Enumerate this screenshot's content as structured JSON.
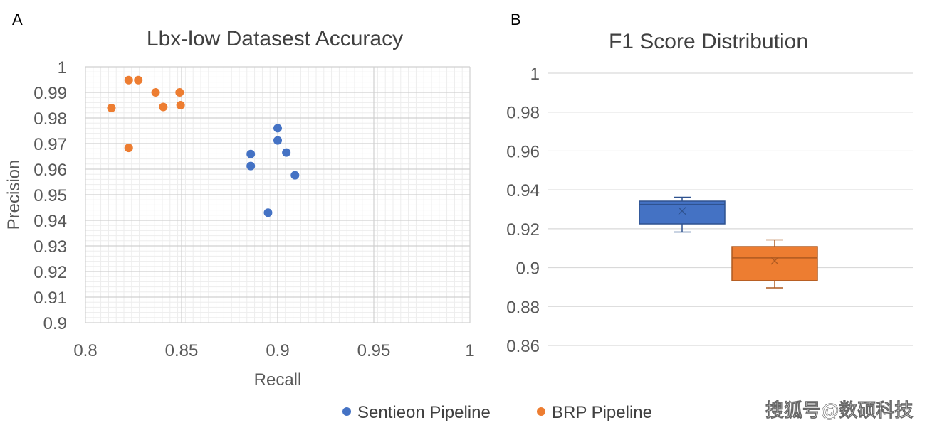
{
  "panels": {
    "a_label": "A",
    "b_label": "B"
  },
  "colors": {
    "sentieon": "#4472C4",
    "brp": "#ED7D31"
  },
  "chart_data": [
    {
      "type": "scatter",
      "title": "Lbx-low Datasest Accuracy",
      "xlabel": "Recall",
      "ylabel": "Precision",
      "xlim": [
        0.8,
        1
      ],
      "ylim": [
        0.9,
        1
      ],
      "x_ticks": [
        "0.8",
        "0.85",
        "0.9",
        "0.95",
        "1"
      ],
      "y_ticks": [
        "0.9",
        "0.91",
        "0.92",
        "0.93",
        "0.94",
        "0.95",
        "0.96",
        "0.97",
        "0.98",
        "0.99",
        "1"
      ],
      "grid": true,
      "series": [
        {
          "name": "Sentieon Pipeline",
          "points": [
            [
              0.9,
              0.976
            ],
            [
              0.9,
              0.9712
            ],
            [
              0.886,
              0.9659
            ],
            [
              0.9045,
              0.9665
            ],
            [
              0.886,
              0.9612
            ],
            [
              0.909,
              0.9576
            ],
            [
              0.895,
              0.943
            ]
          ]
        },
        {
          "name": "BRP Pipeline",
          "points": [
            [
              0.8225,
              0.9948
            ],
            [
              0.8275,
              0.9948
            ],
            [
              0.8365,
              0.99
            ],
            [
              0.849,
              0.99
            ],
            [
              0.8135,
              0.9839
            ],
            [
              0.8405,
              0.9843
            ],
            [
              0.8495,
              0.985
            ],
            [
              0.8225,
              0.9683
            ]
          ]
        }
      ]
    },
    {
      "type": "box",
      "title": "F1 Score Distribution",
      "ylim": [
        0.86,
        1
      ],
      "y_ticks": [
        "0.86",
        "0.88",
        "0.9",
        "0.92",
        "0.94",
        "0.96",
        "0.98",
        "1"
      ],
      "grid": true,
      "series": [
        {
          "name": "Sentieon Pipeline",
          "min": 0.9183,
          "q1": 0.9225,
          "median": 0.9325,
          "q3": 0.9342,
          "max": 0.9362,
          "mean": 0.9292
        },
        {
          "name": "BRP Pipeline",
          "min": 0.8896,
          "q1": 0.8933,
          "median": 0.905,
          "q3": 0.9108,
          "max": 0.9143,
          "mean": 0.9035
        }
      ]
    }
  ],
  "legend": [
    {
      "label": "Sentieon Pipeline",
      "color": "#4472C4"
    },
    {
      "label": "BRP Pipeline",
      "color": "#ED7D31"
    }
  ],
  "watermark": "搜狐号@数硕科技"
}
